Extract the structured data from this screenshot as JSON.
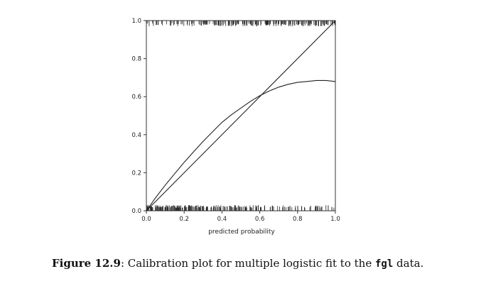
{
  "chart_data": {
    "type": "line",
    "title": "",
    "xlabel": "predicted probability",
    "ylabel": "",
    "xlim": [
      0,
      1
    ],
    "ylim": [
      0,
      1
    ],
    "xticks": [
      "0.0",
      "0.2",
      "0.4",
      "0.6",
      "0.8",
      "1.0"
    ],
    "yticks": [
      "0.0",
      "0.2",
      "0.4",
      "0.6",
      "0.8",
      "1.0"
    ],
    "grid": false,
    "series": [
      {
        "values_x": [
          0,
          1
        ],
        "values_y": [
          0,
          1
        ]
      },
      {
        "values_x": [
          0.0,
          0.05,
          0.1,
          0.15,
          0.2,
          0.25,
          0.3,
          0.35,
          0.4,
          0.45,
          0.5,
          0.55,
          0.6,
          0.65,
          0.7,
          0.75,
          0.8,
          0.85,
          0.9,
          0.95,
          1.0
        ],
        "values_y": [
          0.0,
          0.07,
          0.135,
          0.195,
          0.255,
          0.31,
          0.365,
          0.415,
          0.465,
          0.505,
          0.54,
          0.575,
          0.605,
          0.63,
          0.65,
          0.665,
          0.675,
          0.68,
          0.685,
          0.685,
          0.68
        ]
      }
    ],
    "rug_bottom_density": [
      3,
      3,
      3,
      3,
      3,
      3,
      2,
      2,
      2,
      2,
      2,
      2,
      1,
      1,
      1,
      1,
      1,
      1,
      1,
      1
    ],
    "rug_top_density": [
      1,
      1,
      1,
      1,
      1,
      1,
      2,
      2,
      2,
      2,
      2,
      2,
      2,
      2,
      2,
      2,
      2,
      2,
      2,
      2
    ]
  },
  "caption": {
    "figure_number": "Figure 12.9",
    "text_before_code": ": Calibration plot for multiple logistic fit to the ",
    "code": "fgl",
    "text_after_code": " data."
  }
}
